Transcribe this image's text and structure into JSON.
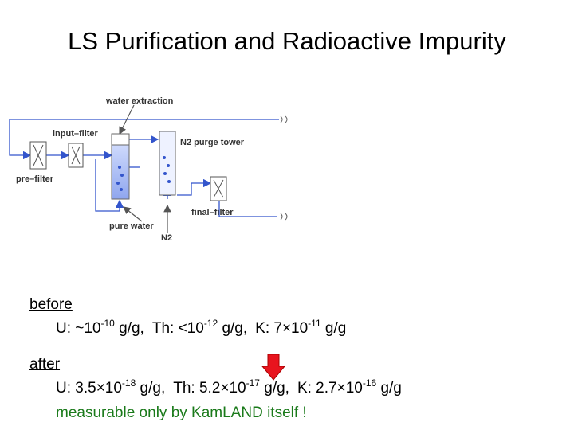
{
  "title": "LS Purification and Radioactive Impurity",
  "diagram": {
    "labels": {
      "water_extraction": "water extraction",
      "input_filter": "input–filter",
      "n2_purge_tower": "N2 purge tower",
      "pre_filter": "pre–filter",
      "final_filter": "final–filter",
      "pure_water": "pure water",
      "n2": "N2"
    }
  },
  "before": {
    "heading": "before",
    "items": [
      {
        "base": "U: ~10",
        "exp": "-10",
        "unit": "g/g,"
      },
      {
        "base": "Th: <10",
        "exp": "-12",
        "unit": "g/g,"
      },
      {
        "base": "K: 7×10",
        "exp": "-11",
        "unit": "g/g"
      }
    ]
  },
  "after": {
    "heading": "after",
    "items": [
      {
        "base": "U: 3.5×10",
        "exp": "-18",
        "unit": "g/g,"
      },
      {
        "base": "Th: 5.2×10",
        "exp": "-17",
        "unit": "g/g,"
      },
      {
        "base": "K: 2.7×10",
        "exp": "-16",
        "unit": "g/g"
      }
    ],
    "note": "measurable only by KamLAND itself !"
  }
}
